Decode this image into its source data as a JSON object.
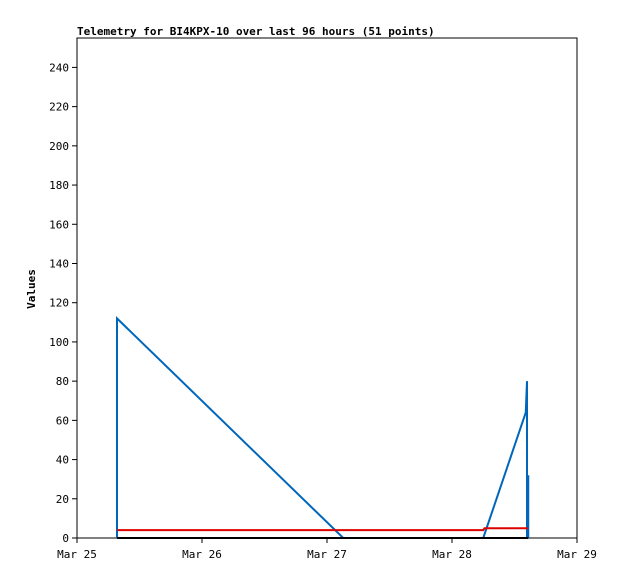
{
  "chart_data": {
    "type": "line",
    "title": "Telemetry for BI4KPX-10 over last 96 hours (51 points)",
    "y_label": "Values",
    "xlim": [
      25,
      29
    ],
    "xticks": [
      {
        "value": 25,
        "label": "Mar 25"
      },
      {
        "value": 26,
        "label": "Mar 26"
      },
      {
        "value": 27,
        "label": "Mar 27"
      },
      {
        "value": 28,
        "label": "Mar 28"
      },
      {
        "value": 29,
        "label": "Mar 29"
      }
    ],
    "ylim": [
      0,
      255
    ],
    "yticks": [
      0,
      20,
      40,
      60,
      80,
      100,
      120,
      140,
      160,
      180,
      200,
      220,
      240
    ],
    "grid": false,
    "series": [
      {
        "color": "#0066bb",
        "x": [
          25.32,
          25.32,
          27.13,
          28.25,
          28.59,
          28.6,
          28.6,
          28.61,
          28.61
        ],
        "values": [
          0,
          112,
          0,
          0,
          64,
          80,
          0,
          32,
          0
        ]
      },
      {
        "color": "#000000",
        "x": [
          25.32,
          28.61
        ],
        "values": [
          0,
          0
        ]
      },
      {
        "color": "#dd0000",
        "x": [
          25.32,
          28.25,
          28.26,
          28.61
        ],
        "values": [
          4,
          4,
          5,
          5
        ]
      }
    ]
  }
}
